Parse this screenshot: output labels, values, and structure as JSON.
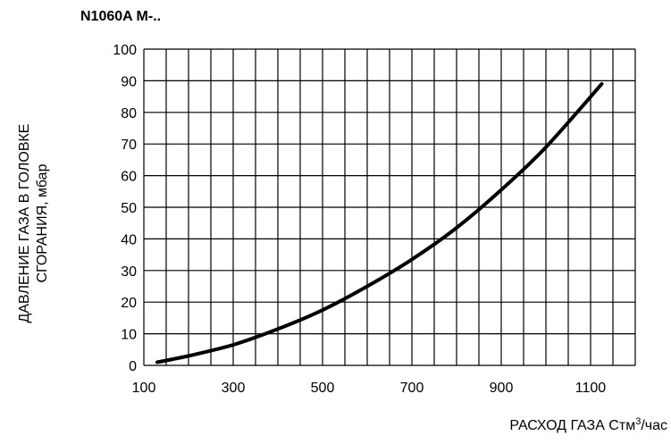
{
  "chart_data": {
    "type": "line",
    "title": "N1060A M-..",
    "ylabel_lines": [
      "ДАВЛЕНИЕ ГАЗА В ГОЛОВКЕ",
      "СГОРАНИЯ, мбар"
    ],
    "xlabel_text": "РАСХОД ГАЗА Стм",
    "xlabel_sup": "3",
    "xlabel_tail": "/час",
    "xlim": [
      100,
      1200
    ],
    "ylim": [
      0,
      100
    ],
    "x_ticks": [
      "100",
      "300",
      "500",
      "700",
      "900",
      "1100"
    ],
    "y_ticks": [
      "0",
      "10",
      "20",
      "30",
      "40",
      "50",
      "60",
      "70",
      "80",
      "90",
      "100"
    ],
    "grid": true,
    "series": [
      {
        "x": [
          130,
          200,
          300,
          400,
          500,
          600,
          700,
          800,
          900,
          1000,
          1125
        ],
        "y": [
          1,
          3,
          6.5,
          11.5,
          17.5,
          25,
          33.5,
          43.5,
          55.5,
          69,
          89
        ],
        "color": "#000000"
      }
    ]
  }
}
